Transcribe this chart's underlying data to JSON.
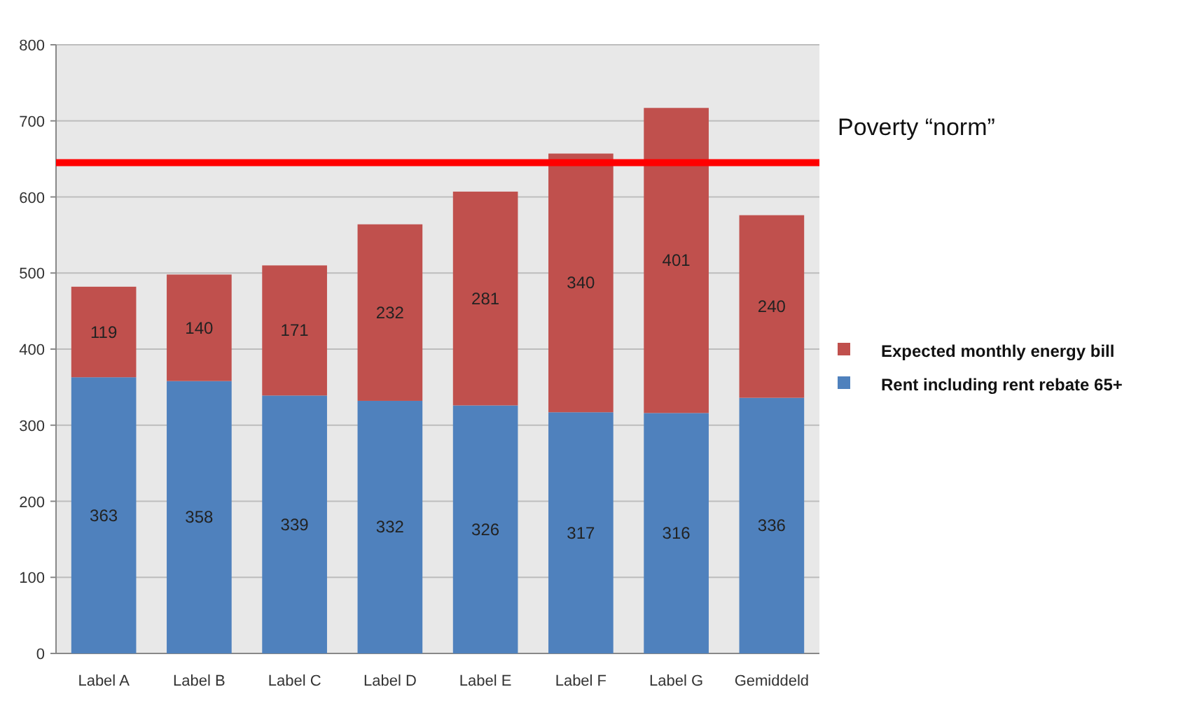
{
  "chart_data": {
    "type": "bar",
    "stacked": true,
    "categories": [
      "Label A",
      "Label B",
      "Label C",
      "Label D",
      "Label E",
      "Label F",
      "Label G",
      "Gemiddeld"
    ],
    "series": [
      {
        "name": "Rent including rent rebate 65+",
        "color": "#4f81bd",
        "values": [
          363,
          358,
          339,
          332,
          326,
          317,
          316,
          336
        ]
      },
      {
        "name": "Expected monthly energy bill",
        "color": "#c0504d",
        "values": [
          119,
          140,
          171,
          232,
          281,
          340,
          401,
          240
        ]
      }
    ],
    "ylim": [
      0,
      800
    ],
    "yticks": [
      0,
      100,
      200,
      300,
      400,
      500,
      600,
      700,
      800
    ],
    "grid": "y",
    "data_labels": true,
    "legend": "right",
    "ref_lines": [
      {
        "axis": "y",
        "value": 645,
        "label": "Poverty “norm”",
        "color": "#ff0000"
      }
    ]
  }
}
